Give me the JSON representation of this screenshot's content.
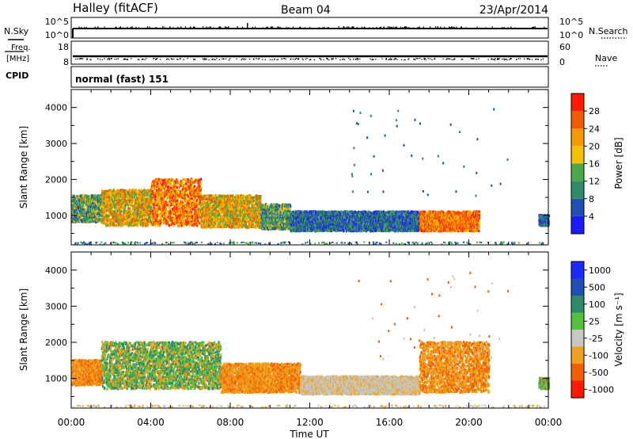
{
  "header": {
    "station": "Halley (fitACF)",
    "beam": "Beam 04",
    "date": "23/Apr/2014"
  },
  "top_panels": {
    "nsky_label": "N.Sky",
    "nsky_ticks": [
      "10^5",
      "10^0"
    ],
    "nsearch_label": "N.Search",
    "nsearch_ticks": [
      "10^5",
      "10^0"
    ],
    "freq_label_top": "Freq.",
    "freq_label_bottom": "[MHz]",
    "freq_ticks": [
      "18",
      "8"
    ],
    "nave_label": "Nave",
    "nave_ticks": [
      "60",
      "0"
    ],
    "cpid_label": "CPID",
    "cpid_value": "normal (fast) 151"
  },
  "chart_data": [
    {
      "type": "heatmap",
      "name": "power",
      "ylabel": "Slant Range [km]",
      "xlabel": "Time UT",
      "x_ticks": [
        "00:00",
        "04:00",
        "08:00",
        "12:00",
        "16:00",
        "20:00",
        "00:00"
      ],
      "x_range_hours": [
        0,
        24
      ],
      "y_ticks": [
        "1000",
        "2000",
        "3000",
        "4000"
      ],
      "y_range_km": [
        180,
        4500
      ],
      "colorbar_label": "Power [dB]",
      "colorbar_ticks": [
        "4",
        "8",
        "12",
        "16",
        "20",
        "24",
        "28"
      ],
      "colorbar_colors": [
        "#1a1aff",
        "#1f4fb0",
        "#2f8a6a",
        "#4aa84a",
        "#f2c200",
        "#f29a00",
        "#f25a00",
        "#ff1a00"
      ],
      "echo_regions": [
        {
          "t0": 0.0,
          "t1": 1.5,
          "r0": 800,
          "r1": 1550,
          "level": 3
        },
        {
          "t0": 1.5,
          "t1": 4.0,
          "r0": 700,
          "r1": 1700,
          "level": 5
        },
        {
          "t0": 4.0,
          "t1": 6.5,
          "r0": 700,
          "r1": 2000,
          "level": 6
        },
        {
          "t0": 6.5,
          "t1": 9.5,
          "r0": 650,
          "r1": 1550,
          "level": 5
        },
        {
          "t0": 9.5,
          "t1": 11.0,
          "r0": 600,
          "r1": 1300,
          "level": 3
        },
        {
          "t0": 11.0,
          "t1": 17.5,
          "r0": 550,
          "r1": 1100,
          "level": 2
        },
        {
          "t0": 17.5,
          "t1": 20.5,
          "r0": 550,
          "r1": 1100,
          "level": 6
        },
        {
          "t0": 23.5,
          "t1": 24.0,
          "r0": 700,
          "r1": 1000,
          "level": 2
        }
      ]
    },
    {
      "type": "heatmap",
      "name": "velocity",
      "ylabel": "Slant Range [km]",
      "xlabel": "Time UT",
      "x_ticks": [
        "00:00",
        "04:00",
        "08:00",
        "12:00",
        "16:00",
        "20:00",
        "00:00"
      ],
      "x_range_hours": [
        0,
        24
      ],
      "y_ticks": [
        "1000",
        "2000",
        "3000",
        "4000"
      ],
      "y_range_km": [
        180,
        4500
      ],
      "colorbar_label": "Velocity [m s⁻¹]",
      "colorbar_ticks": [
        "1000",
        "500",
        "100",
        "25",
        "-25",
        "-100",
        "-500",
        "-1000"
      ],
      "colorbar_colors": [
        "#1a2aff",
        "#1f4fb0",
        "#2f8a6a",
        "#55c040",
        "#c8c8c0",
        "#f0a020",
        "#f06000",
        "#ff1a00"
      ],
      "echo_regions": [
        {
          "t0": 0.0,
          "t1": 1.5,
          "r0": 800,
          "r1": 1500,
          "level": "neg"
        },
        {
          "t0": 1.5,
          "t1": 7.5,
          "r0": 700,
          "r1": 2000,
          "level": "pos"
        },
        {
          "t0": 7.5,
          "t1": 11.5,
          "r0": 600,
          "r1": 1400,
          "level": "neg"
        },
        {
          "t0": 11.5,
          "t1": 17.5,
          "r0": 550,
          "r1": 1050,
          "level": "zero"
        },
        {
          "t0": 17.5,
          "t1": 21.0,
          "r0": 600,
          "r1": 2000,
          "level": "neg"
        },
        {
          "t0": 23.5,
          "t1": 24.0,
          "r0": 700,
          "r1": 1000,
          "level": "pos"
        }
      ]
    }
  ],
  "colors": {
    "frame": "#000000",
    "background": "#ffffff"
  }
}
